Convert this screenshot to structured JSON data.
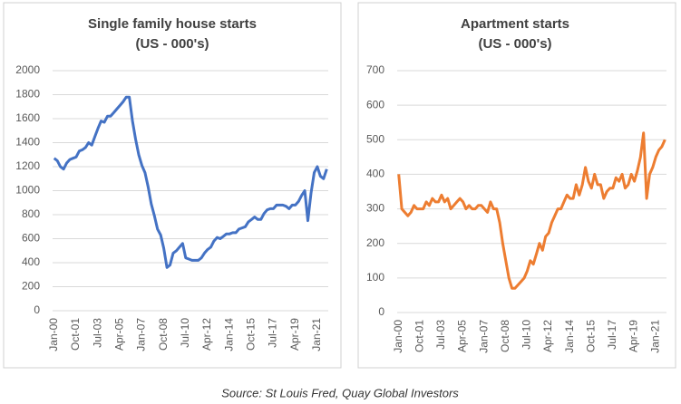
{
  "chart_data": [
    {
      "type": "line",
      "title": "Single family house starts",
      "subtitle": "(US - 000's)",
      "categories": [
        "Jan-00",
        null,
        null,
        null,
        null,
        null,
        null,
        "Oct-01",
        null,
        null,
        null,
        null,
        null,
        null,
        "Jul-03",
        null,
        null,
        null,
        null,
        null,
        null,
        "Apr-05",
        null,
        null,
        null,
        null,
        null,
        null,
        "Jan-07",
        null,
        null,
        null,
        null,
        null,
        null,
        "Oct-08",
        null,
        null,
        null,
        null,
        null,
        null,
        "Jul-10",
        null,
        null,
        null,
        null,
        null,
        null,
        "Apr-12",
        null,
        null,
        null,
        null,
        null,
        null,
        "Jan-14",
        null,
        null,
        null,
        null,
        null,
        null,
        "Oct-15",
        null,
        null,
        null,
        null,
        null,
        null,
        "Jul-17",
        null,
        null,
        null,
        null,
        null,
        null,
        "Apr-19",
        null,
        null,
        null,
        null,
        null,
        null,
        "Jan-21",
        null,
        null,
        null
      ],
      "series": [
        {
          "name": "Single family house starts",
          "color": "#4472c4",
          "values": [
            1270,
            1250,
            1200,
            1180,
            1230,
            1260,
            1270,
            1280,
            1330,
            1340,
            1360,
            1400,
            1380,
            1450,
            1520,
            1580,
            1570,
            1620,
            1620,
            1650,
            1680,
            1710,
            1740,
            1780,
            1780,
            1580,
            1430,
            1300,
            1210,
            1150,
            1030,
            890,
            790,
            680,
            630,
            520,
            360,
            380,
            480,
            500,
            530,
            560,
            440,
            430,
            420,
            420,
            420,
            440,
            480,
            510,
            530,
            580,
            610,
            600,
            620,
            640,
            640,
            650,
            650,
            680,
            690,
            700,
            740,
            760,
            780,
            760,
            760,
            810,
            840,
            850,
            850,
            880,
            880,
            880,
            870,
            850,
            880,
            880,
            910,
            960,
            1000,
            750,
            980,
            1150,
            1200,
            1120,
            1100,
            1180
          ]
        }
      ],
      "ylim": [
        0,
        2000
      ],
      "yticks": [
        0,
        200,
        400,
        600,
        800,
        1000,
        1200,
        1400,
        1600,
        1800,
        2000
      ],
      "grid": true
    },
    {
      "type": "line",
      "title": "Apartment starts",
      "subtitle": "(US - 000's)",
      "categories": [
        "Jan-00",
        null,
        null,
        null,
        null,
        null,
        null,
        "Oct-01",
        null,
        null,
        null,
        null,
        null,
        null,
        "Jul-03",
        null,
        null,
        null,
        null,
        null,
        null,
        "Apr-05",
        null,
        null,
        null,
        null,
        null,
        null,
        "Jan-07",
        null,
        null,
        null,
        null,
        null,
        null,
        "Oct-08",
        null,
        null,
        null,
        null,
        null,
        null,
        "Jul-10",
        null,
        null,
        null,
        null,
        null,
        null,
        "Apr-12",
        null,
        null,
        null,
        null,
        null,
        null,
        "Jan-14",
        null,
        null,
        null,
        null,
        null,
        null,
        "Oct-15",
        null,
        null,
        null,
        null,
        null,
        null,
        "Jul-17",
        null,
        null,
        null,
        null,
        null,
        null,
        "Apr-19",
        null,
        null,
        null,
        null,
        null,
        null,
        "Jan-21",
        null,
        null,
        null
      ],
      "series": [
        {
          "name": "Apartment starts",
          "color": "#ed7d31",
          "values": [
            400,
            300,
            290,
            280,
            290,
            310,
            300,
            300,
            300,
            320,
            310,
            330,
            320,
            320,
            340,
            320,
            330,
            300,
            310,
            320,
            330,
            320,
            300,
            310,
            300,
            300,
            310,
            310,
            300,
            290,
            320,
            300,
            300,
            260,
            200,
            150,
            100,
            70,
            70,
            80,
            90,
            100,
            120,
            150,
            140,
            170,
            200,
            180,
            220,
            230,
            260,
            280,
            300,
            300,
            320,
            340,
            330,
            330,
            370,
            340,
            370,
            420,
            380,
            360,
            400,
            370,
            370,
            330,
            350,
            360,
            360,
            390,
            380,
            400,
            360,
            370,
            400,
            380,
            410,
            450,
            520,
            330,
            400,
            420,
            450,
            470,
            480,
            500
          ]
        }
      ],
      "ylim": [
        0,
        700
      ],
      "yticks": [
        0,
        100,
        200,
        300,
        400,
        500,
        600,
        700
      ],
      "grid": true
    }
  ],
  "source": "Source: St Louis Fred, Quay Global Investors"
}
